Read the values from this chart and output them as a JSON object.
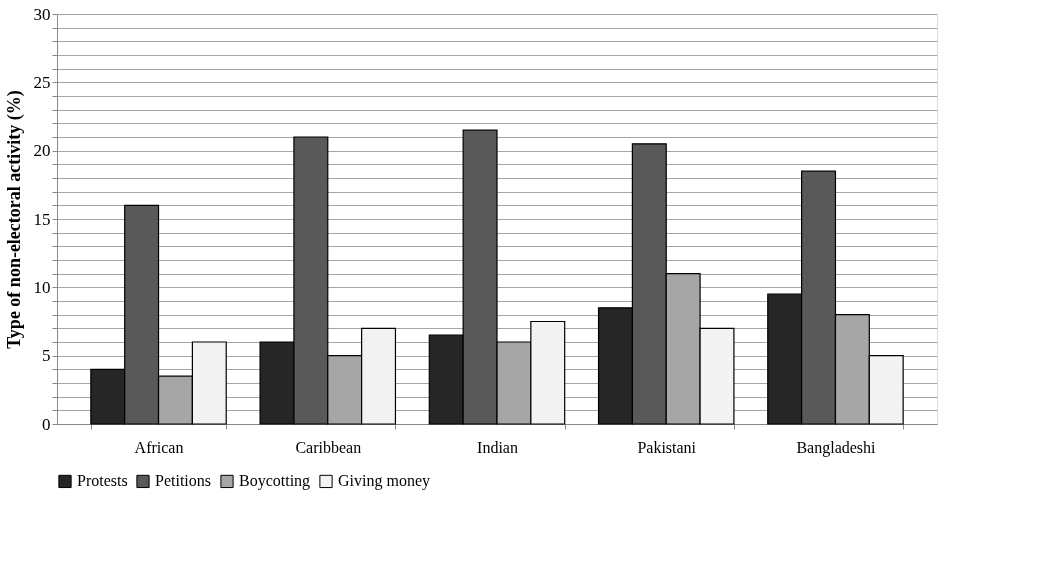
{
  "chart_data": {
    "type": "bar",
    "ylabel": "Type of non-electoral activity (%)",
    "categories": [
      "African",
      "Caribbean",
      "Indian",
      "Pakistani",
      "Bangladeshi"
    ],
    "series": [
      {
        "name": "Protests",
        "color": "#262626",
        "values": [
          4,
          6,
          6.5,
          8.5,
          9.5
        ]
      },
      {
        "name": "Petitions",
        "color": "#595959",
        "values": [
          16,
          21,
          21.5,
          20.5,
          18.5
        ]
      },
      {
        "name": "Boycotting",
        "color": "#a6a6a6",
        "values": [
          3.5,
          5,
          6,
          11,
          8
        ]
      },
      {
        "name": "Giving money",
        "color": "#f2f2f2",
        "values": [
          6,
          7,
          7.5,
          7,
          5
        ]
      }
    ],
    "ylim": [
      0,
      30
    ],
    "yticks": [
      0,
      {
        "value": 1,
        "label": null
      },
      {
        "value": 2,
        "label": null
      },
      {
        "value": 3,
        "label": null
      },
      {
        "value": 4,
        "label": null
      },
      5,
      {
        "value": 6,
        "label": null
      },
      {
        "value": 7,
        "label": null
      },
      {
        "value": 8,
        "label": null
      },
      {
        "value": 9,
        "label": null
      },
      10,
      {
        "value": 11,
        "label": null
      },
      {
        "value": 12,
        "label": null
      },
      {
        "value": 13,
        "label": null
      },
      {
        "value": 14,
        "label": null
      },
      15,
      {
        "value": 16,
        "label": null
      },
      {
        "value": 17,
        "label": null
      },
      {
        "value": 18,
        "label": null
      },
      {
        "value": 19,
        "label": null
      },
      20,
      {
        "value": 21,
        "label": null
      },
      {
        "value": 22,
        "label": null
      },
      {
        "value": 23,
        "label": null
      },
      {
        "value": 24,
        "label": null
      },
      25,
      {
        "value": 26,
        "label": null
      },
      {
        "value": 27,
        "label": null
      },
      {
        "value": 28,
        "label": null
      },
      {
        "value": 29,
        "label": null
      },
      30
    ],
    "grid": "y",
    "legend": "bottom"
  }
}
